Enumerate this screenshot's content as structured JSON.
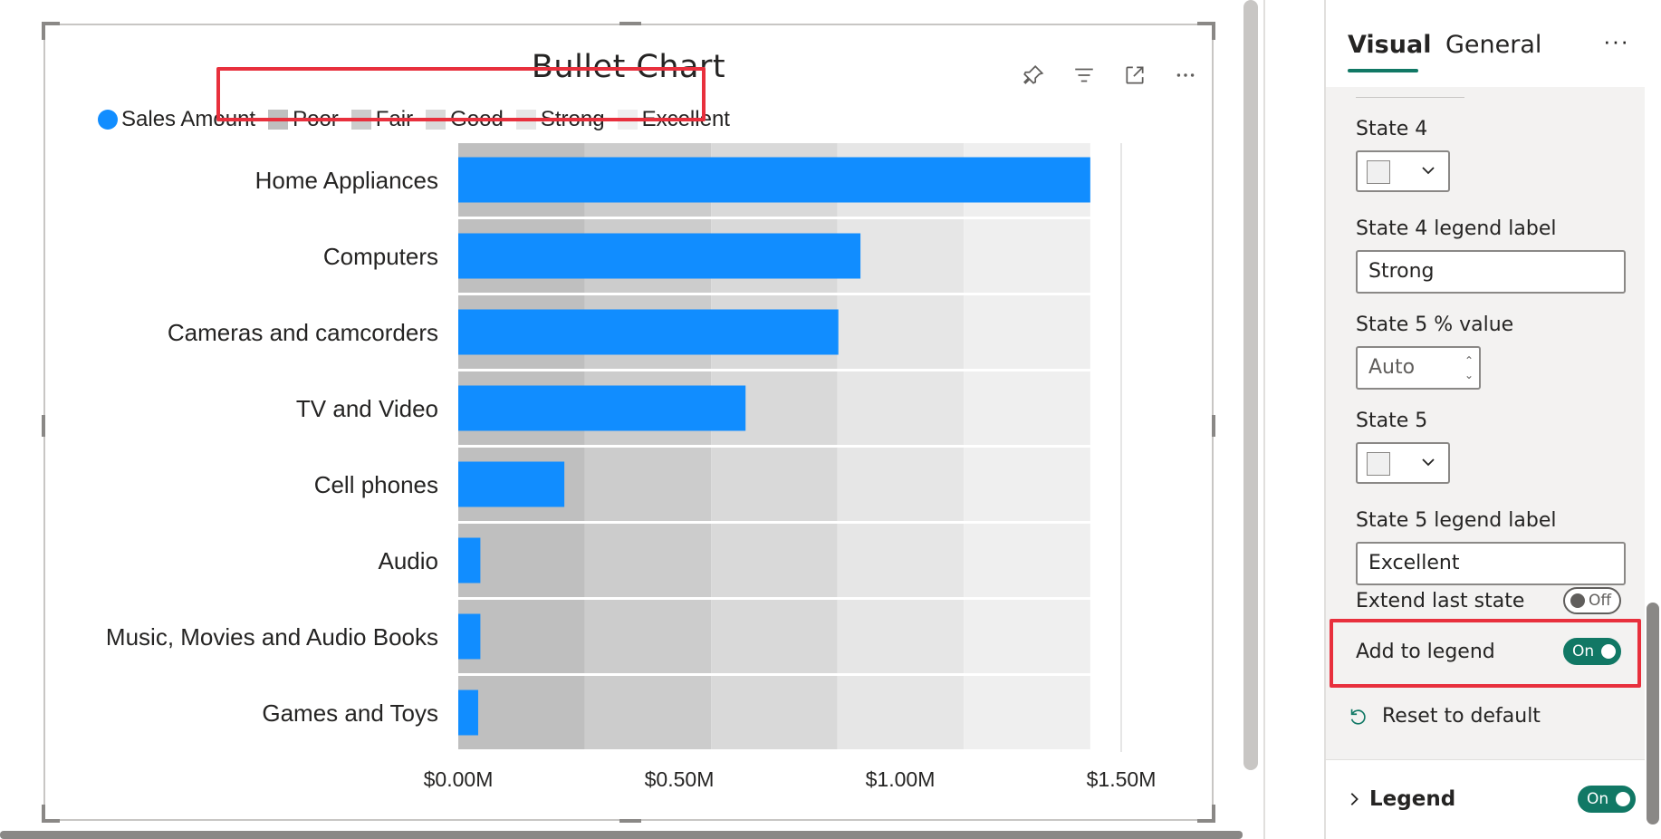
{
  "chart": {
    "title": "Bullet Chart",
    "header_icons": [
      "pin-icon",
      "filter-icon",
      "focus-mode-icon",
      "more-options-icon"
    ],
    "legend": [
      {
        "label": "Sales Amount",
        "color": "#118dff",
        "shape": "circle"
      },
      {
        "label": "Poor",
        "color": "#bfbfbf",
        "shape": "square"
      },
      {
        "label": "Fair",
        "color": "#cccccc",
        "shape": "square"
      },
      {
        "label": "Good",
        "color": "#d9d9d9",
        "shape": "square"
      },
      {
        "label": "Strong",
        "color": "#e6e6e6",
        "shape": "square"
      },
      {
        "label": "Excellent",
        "color": "#efefef",
        "shape": "square"
      }
    ]
  },
  "chart_data": {
    "type": "bar",
    "title": "Bullet Chart",
    "orientation": "horizontal",
    "categories": [
      "Home Appliances",
      "Computers",
      "Cameras and camcorders",
      "TV and Video",
      "Cell phones",
      "Audio",
      "Music, Movies and Audio Books",
      "Games and Toys"
    ],
    "series": [
      {
        "name": "Sales Amount",
        "color": "#118dff",
        "values": [
          1.43,
          0.91,
          0.86,
          0.65,
          0.24,
          0.05,
          0.05,
          0.045
        ]
      }
    ],
    "bands": [
      {
        "name": "Poor",
        "from": 0,
        "to": 0.286,
        "color": "#bfbfbf"
      },
      {
        "name": "Fair",
        "from": 0.286,
        "to": 0.572,
        "color": "#cccccc"
      },
      {
        "name": "Good",
        "from": 0.572,
        "to": 0.858,
        "color": "#d9d9d9"
      },
      {
        "name": "Strong",
        "from": 0.858,
        "to": 1.144,
        "color": "#e6e6e6"
      },
      {
        "name": "Excellent",
        "from": 1.144,
        "to": 1.43,
        "color": "#efefef"
      }
    ],
    "xticks": [
      0,
      0.5,
      1.0,
      1.5
    ],
    "xtick_labels": [
      "$0.00M",
      "$0.50M",
      "$1.00M",
      "$1.50M"
    ],
    "xlim": [
      0,
      1.5
    ],
    "legend_position": "top-left",
    "grid": false
  },
  "pane": {
    "tabs": [
      {
        "label": "Visual",
        "active": true
      },
      {
        "label": "General",
        "active": false
      }
    ],
    "more": "···",
    "state4_label": "State 4",
    "state4_color": "#f0f0f0",
    "state4_legend_label": "State 4 legend label",
    "state4_legend_value": "Strong",
    "state5_pct_label": "State 5 % value",
    "state5_pct_value": "Auto",
    "state5_label": "State 5",
    "state5_color": "#f0f0f0",
    "state5_legend_label": "State 5 legend label",
    "state5_legend_value": "Excellent",
    "extend_last_state_label": "Extend last state",
    "extend_last_state_value": "Off",
    "add_to_legend_label": "Add to legend",
    "add_to_legend_value": "On",
    "reset_label": "Reset to default",
    "legend_section_label": "Legend",
    "legend_section_value": "On"
  }
}
